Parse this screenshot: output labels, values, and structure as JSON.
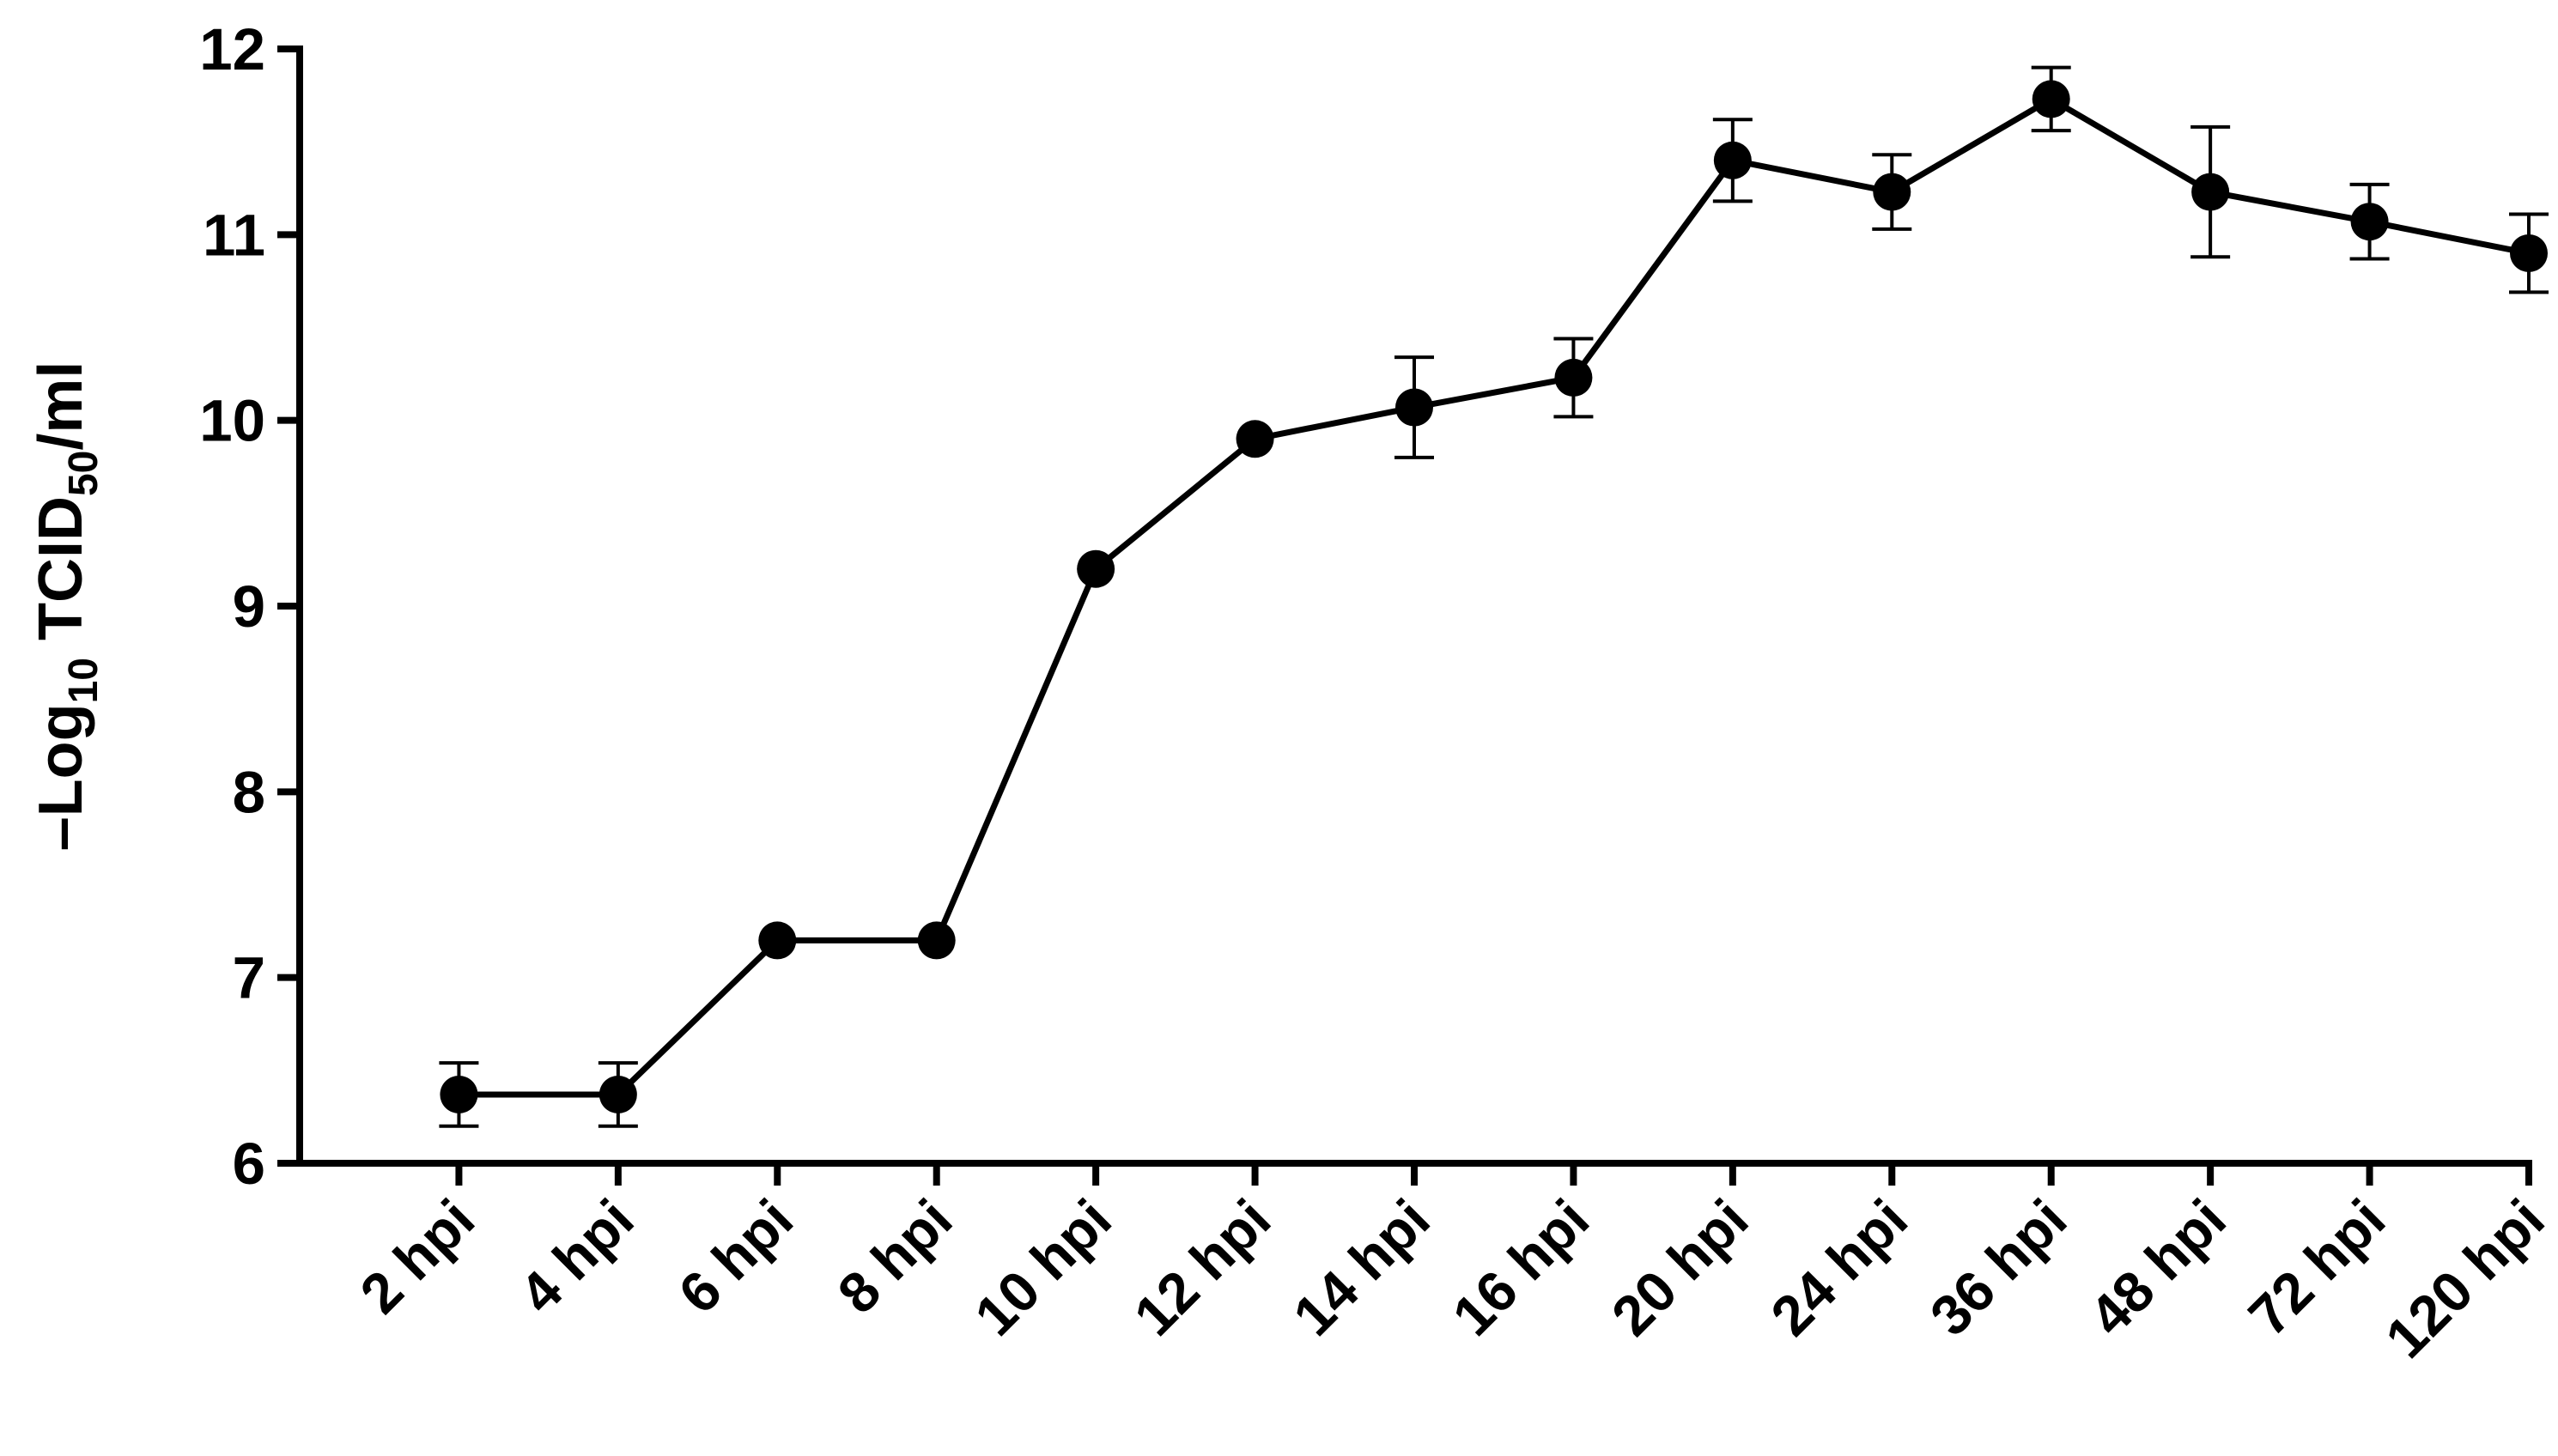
{
  "chart_data": {
    "type": "line",
    "y_label": [
      "–Log",
      "10",
      " TCID",
      "50",
      "/ml"
    ],
    "categories": [
      "2 hpi",
      "4 hpi",
      "6 hpi",
      "8 hpi",
      "10 hpi",
      "12 hpi",
      "14 hpi",
      "16 hpi",
      "20 hpi",
      "24 hpi",
      "36 hpi",
      "48 hpi",
      "72 hpi",
      "120 hpi"
    ],
    "series": [
      {
        "color": "#000000",
        "values": [
          6.37,
          6.37,
          7.2,
          7.2,
          9.2,
          9.9,
          10.07,
          10.23,
          11.4,
          11.23,
          11.73,
          11.23,
          11.07,
          10.9
        ],
        "errors": [
          0.17,
          0.17,
          null,
          null,
          null,
          null,
          0.27,
          0.21,
          0.22,
          0.2,
          0.17,
          0.35,
          0.2,
          0.21
        ]
      }
    ],
    "ylim": [
      6,
      12
    ],
    "yticks": [
      6,
      7,
      8,
      9,
      10,
      11,
      12
    ]
  }
}
